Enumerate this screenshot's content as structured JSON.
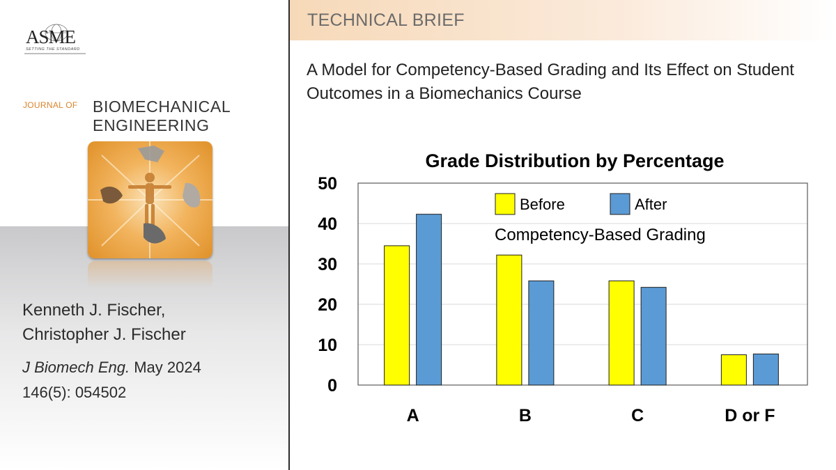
{
  "publisher": {
    "logo_text": "ASME",
    "tagline": "SETTING THE STANDARD"
  },
  "journal": {
    "prefix": "JOURNAL OF",
    "name_line1": "BIOMECHANICAL",
    "name_line2": "ENGINEERING"
  },
  "authors": {
    "line1": "Kenneth J. Fischer,",
    "line2": "Christopher J. Fischer"
  },
  "citation": {
    "journal": "J Biomech Eng.",
    "date": " May 2024",
    "volume": "146(5): 054502"
  },
  "banner": {
    "label": "TECHNICAL BRIEF"
  },
  "article": {
    "title": "A Model for Competency-Based Grading and Its Effect on Student Outcomes in a Biomechanics Course"
  },
  "colors": {
    "before": "#ffff00",
    "after": "#5b9bd5",
    "accent": "#d9832a"
  },
  "chart_data": {
    "type": "bar",
    "title": "Grade Distribution by Percentage",
    "categories": [
      "A",
      "B",
      "C",
      "D or F"
    ],
    "series": [
      {
        "name": "Before",
        "values": [
          34.5,
          32.2,
          25.8,
          7.5
        ]
      },
      {
        "name": "After",
        "values": [
          42.3,
          25.8,
          24.2,
          7.7
        ]
      }
    ],
    "annotation": "Competency-Based Grading",
    "ylim": [
      0,
      50
    ],
    "yticks": [
      0,
      10,
      20,
      30,
      40,
      50
    ],
    "xlabel": "",
    "ylabel": "",
    "legend_position": "top-center",
    "grid": true
  }
}
